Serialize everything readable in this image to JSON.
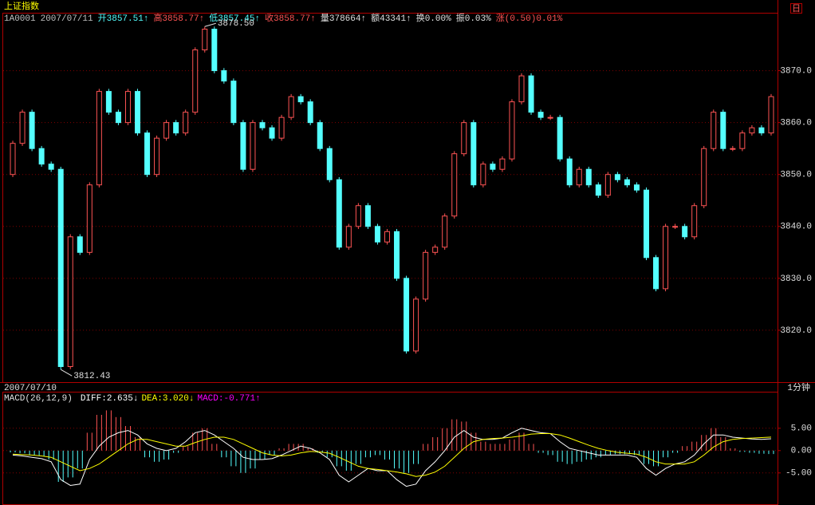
{
  "header": {
    "title": "上证指数",
    "period_icon": "日",
    "items": [
      {
        "text": "1A0001",
        "color": "#c0c0c0"
      },
      {
        "text": "2007/07/11",
        "color": "#c0c0c0"
      },
      {
        "text": "开3857.51↑",
        "color": "#54ffff"
      },
      {
        "text": "高3858.77↑",
        "color": "#ff5454"
      },
      {
        "text": "低3857.45↑",
        "color": "#54ffff"
      },
      {
        "text": "收3858.77↑",
        "color": "#ff5454"
      },
      {
        "text": "量378664↑",
        "color": "#e0e0e0"
      },
      {
        "text": "额43341↑",
        "color": "#e0e0e0"
      },
      {
        "text": "换0.00%",
        "color": "#e0e0e0"
      },
      {
        "text": "振0.03%",
        "color": "#e0e0e0"
      },
      {
        "text": "涨(0.50)0.01%",
        "color": "#ff5454"
      }
    ]
  },
  "footer": {
    "date": "2007/07/10",
    "period": "1分钟"
  },
  "chart_data": [
    {
      "type": "candlestick",
      "up_color": "#ff5454",
      "down_color": "#54ffff",
      "grid": true,
      "ylim": [
        3810,
        3881
      ],
      "yticks": [
        {
          "value": 3820,
          "label": "3820.0"
        },
        {
          "value": 3830,
          "label": "3830.0"
        },
        {
          "value": 3840,
          "label": "3840.0"
        },
        {
          "value": 3850,
          "label": "3850.0"
        },
        {
          "value": 3860,
          "label": "3860.0"
        },
        {
          "value": 3870,
          "label": "3870.0"
        }
      ],
      "annotations": {
        "max": "3878.50",
        "min": "3812.43"
      },
      "open": [
        3850,
        3856,
        3862,
        3855,
        3852,
        3851,
        3813,
        3838,
        3835,
        3848,
        3866,
        3862,
        3860,
        3866,
        3858,
        3850,
        3857,
        3860,
        3858,
        3862,
        3874,
        3878,
        3870,
        3868,
        3860,
        3851,
        3860,
        3859,
        3857,
        3861,
        3865,
        3864,
        3860,
        3855,
        3849,
        3836,
        3840,
        3844,
        3840,
        3837,
        3839,
        3830,
        3816,
        3826,
        3835,
        3836,
        3842,
        3854,
        3860,
        3848,
        3852,
        3851,
        3853,
        3864,
        3869,
        3862,
        3861,
        3861,
        3853,
        3848,
        3851,
        3848,
        3846,
        3850,
        3849,
        3848,
        3847,
        3834,
        3828,
        3840,
        3840,
        3838,
        3844,
        3855,
        3862,
        3855,
        3855,
        3858,
        3859,
        3858
      ],
      "close": [
        3856,
        3862,
        3855,
        3852,
        3851,
        3813,
        3838,
        3835,
        3848,
        3866,
        3862,
        3860,
        3866,
        3858,
        3850,
        3857,
        3860,
        3858,
        3862,
        3874,
        3878,
        3870,
        3868,
        3860,
        3851,
        3860,
        3859,
        3857,
        3861,
        3865,
        3864,
        3860,
        3855,
        3849,
        3836,
        3840,
        3844,
        3840,
        3837,
        3839,
        3830,
        3816,
        3826,
        3835,
        3836,
        3842,
        3854,
        3860,
        3848,
        3852,
        3851,
        3853,
        3864,
        3869,
        3862,
        3861,
        3861,
        3853,
        3848,
        3851,
        3848,
        3846,
        3850,
        3849,
        3848,
        3847,
        3834,
        3828,
        3840,
        3840,
        3838,
        3844,
        3855,
        3862,
        3855,
        3855,
        3858,
        3859,
        3858,
        3865
      ],
      "high": [
        3856.5,
        3862.5,
        3862.5,
        3855.5,
        3852.5,
        3851.5,
        3838.5,
        3838.5,
        3848.5,
        3866.5,
        3866.5,
        3862.5,
        3866.5,
        3866.5,
        3858.5,
        3857.5,
        3860.5,
        3860.5,
        3862.5,
        3874.5,
        3878.5,
        3878.5,
        3870.5,
        3868.5,
        3860.5,
        3860.5,
        3860.5,
        3859.5,
        3861.5,
        3865.5,
        3865.5,
        3864.5,
        3860.5,
        3855.5,
        3849.5,
        3840.5,
        3844.5,
        3844.5,
        3840.5,
        3839.5,
        3839.5,
        3830.5,
        3826.5,
        3835.5,
        3836.5,
        3842.5,
        3854.5,
        3860.5,
        3860.5,
        3852.5,
        3852.5,
        3853.5,
        3864.5,
        3869.5,
        3869.5,
        3862.5,
        3861.5,
        3861.5,
        3853.5,
        3851.5,
        3851.5,
        3848.5,
        3850.5,
        3850.5,
        3849.5,
        3848.5,
        3847.5,
        3834.5,
        3840.5,
        3840.5,
        3840.5,
        3844.5,
        3855.5,
        3862.5,
        3862.5,
        3855.5,
        3858.5,
        3859.5,
        3859.5,
        3865.5
      ],
      "low": [
        3849.5,
        3855.5,
        3854.5,
        3851.5,
        3850.5,
        3812.43,
        3812.5,
        3834.5,
        3834.5,
        3847.5,
        3861.5,
        3859.5,
        3859.5,
        3857.5,
        3849.5,
        3849.5,
        3856.5,
        3857.5,
        3857.5,
        3861.5,
        3873.5,
        3869.5,
        3867.5,
        3859.5,
        3850.5,
        3850.5,
        3858.5,
        3856.5,
        3856.5,
        3860.5,
        3863.5,
        3859.5,
        3854.5,
        3848.5,
        3835.5,
        3835.5,
        3839.5,
        3839.5,
        3836.5,
        3836.5,
        3829.5,
        3815.5,
        3815.5,
        3825.5,
        3834.5,
        3835.5,
        3841.5,
        3853.5,
        3847.5,
        3847.5,
        3850.5,
        3850.5,
        3852.5,
        3863.5,
        3861.5,
        3860.5,
        3860.5,
        3852.5,
        3847.5,
        3847.5,
        3847.5,
        3845.5,
        3845.5,
        3848.5,
        3847.5,
        3846.5,
        3833.5,
        3827.5,
        3827.5,
        3839.5,
        3837.5,
        3837.5,
        3843.5,
        3854.5,
        3854.5,
        3854.5,
        3854.5,
        3857.5,
        3857.5,
        3857.5
      ]
    },
    {
      "type": "macd",
      "label": "MACD(26,12,9)",
      "grid": true,
      "ylim": [
        -12,
        13
      ],
      "yticks": [
        {
          "value": 5,
          "label": "5.00"
        },
        {
          "value": 0,
          "label": "0.00"
        },
        {
          "value": -5,
          "label": "-5.00"
        }
      ],
      "series": [
        {
          "color": "#ffffff",
          "values": [
            -1.0,
            -1.2,
            -1.5,
            -1.8,
            -2.5,
            -6.5,
            -7.8,
            -7.5,
            -2.0,
            1.0,
            3.0,
            4.0,
            4.5,
            3.5,
            1.5,
            0.5,
            0.0,
            0.5,
            2.0,
            4.0,
            4.5,
            3.5,
            2.0,
            0.5,
            -1.5,
            -2.0,
            -2.0,
            -1.8,
            -1.0,
            0.0,
            1.0,
            0.5,
            -0.5,
            -2.0,
            -5.5,
            -7.0,
            -5.5,
            -4.0,
            -4.5,
            -4.5,
            -6.5,
            -8.0,
            -7.5,
            -4.5,
            -2.5,
            0.0,
            3.0,
            4.5,
            3.0,
            2.5,
            2.5,
            2.8,
            4.0,
            5.0,
            4.5,
            4.0,
            3.8,
            2.0,
            0.5,
            0.0,
            -0.5,
            -1.0,
            -1.0,
            -1.0,
            -1.0,
            -1.5,
            -4.0,
            -5.5,
            -4.0,
            -3.0,
            -2.5,
            -1.0,
            1.5,
            3.5,
            3.5,
            3.0,
            2.8,
            2.6,
            2.5,
            2.635
          ],
          "readout": "DIFF:2.635↓"
        },
        {
          "color": "#ffff00",
          "values": [
            -0.8,
            -0.9,
            -1.0,
            -1.2,
            -1.5,
            -2.5,
            -3.5,
            -4.5,
            -4.0,
            -3.0,
            -1.5,
            0.0,
            1.5,
            2.5,
            2.5,
            2.0,
            1.5,
            1.0,
            1.0,
            1.8,
            2.5,
            3.0,
            3.0,
            2.5,
            1.5,
            0.5,
            -0.5,
            -1.0,
            -1.2,
            -1.0,
            -0.5,
            -0.2,
            -0.3,
            -0.6,
            -1.5,
            -2.5,
            -3.5,
            -4.0,
            -4.2,
            -4.5,
            -4.8,
            -5.2,
            -5.8,
            -5.5,
            -4.8,
            -3.5,
            -1.5,
            0.5,
            2.0,
            2.5,
            2.7,
            2.8,
            3.0,
            3.3,
            3.7,
            3.8,
            3.8,
            3.5,
            2.8,
            2.0,
            1.2,
            0.5,
            0.0,
            -0.4,
            -0.6,
            -0.8,
            -1.5,
            -2.5,
            -3.0,
            -3.0,
            -3.0,
            -2.5,
            -1.0,
            0.8,
            2.0,
            2.5,
            2.7,
            2.8,
            2.9,
            3.02
          ],
          "readout": "DEA:3.020↓"
        },
        {
          "color": "#ff00ff",
          "up_color": "#ff5454",
          "down_color": "#54ffff",
          "values": [
            -0.4,
            -0.6,
            -1.0,
            -1.2,
            -2.0,
            -7.0,
            -6.0,
            -4.0,
            4.0,
            8.0,
            9.0,
            7.5,
            5.5,
            3.0,
            -1.5,
            -2.5,
            -2.0,
            -0.5,
            1.0,
            4.0,
            5.0,
            1.5,
            -1.5,
            -3.5,
            -5.0,
            -4.0,
            -2.0,
            -1.0,
            0.5,
            1.5,
            1.5,
            0.5,
            -0.5,
            -1.5,
            -3.5,
            -4.5,
            -3.0,
            -1.5,
            -1.0,
            -2.0,
            -4.0,
            -5.0,
            -3.0,
            1.5,
            3.0,
            5.0,
            7.0,
            6.5,
            4.0,
            2.0,
            1.5,
            1.5,
            2.5,
            4.0,
            1.5,
            -0.5,
            -1.0,
            -2.5,
            -3.0,
            -2.5,
            -2.0,
            -1.5,
            -1.0,
            -0.8,
            -0.8,
            -1.0,
            -3.0,
            -3.5,
            -1.5,
            -0.5,
            1.0,
            2.0,
            3.5,
            5.0,
            3.0,
            0.5,
            -0.3,
            -0.5,
            -0.7,
            -0.771
          ],
          "readout": "MACD:-0.771↑"
        }
      ]
    }
  ]
}
